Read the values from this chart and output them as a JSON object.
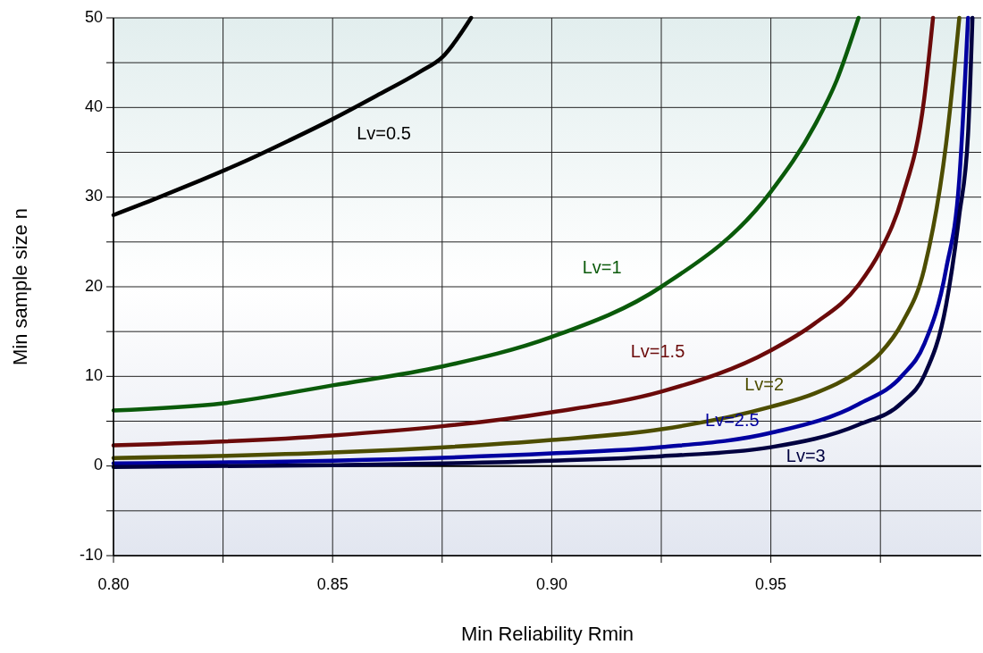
{
  "chart_data": {
    "type": "line",
    "xlabel": "Min Reliability Rmin",
    "ylabel": "Min sample size n",
    "xlim": [
      0.8,
      0.998
    ],
    "ylim": [
      -10,
      50
    ],
    "xticks": [
      {
        "value": 0.8,
        "label": "0.80"
      },
      {
        "value": 0.825,
        "label": null
      },
      {
        "value": 0.85,
        "label": "0.85"
      },
      {
        "value": 0.875,
        "label": null
      },
      {
        "value": 0.9,
        "label": "0.90"
      },
      {
        "value": 0.925,
        "label": null
      },
      {
        "value": 0.95,
        "label": "0.95"
      },
      {
        "value": 0.975,
        "label": null
      }
    ],
    "yticks": [
      -10,
      {
        "value": -5,
        "label": null
      },
      0,
      {
        "value": 5,
        "label": null
      },
      10,
      {
        "value": 15,
        "label": null
      },
      20,
      {
        "value": 25,
        "label": null
      },
      30,
      {
        "value": 35,
        "label": null
      },
      40,
      {
        "value": 45,
        "label": null
      },
      50
    ],
    "grid": true,
    "legend": false,
    "line_style": "solid",
    "marker": "none",
    "ref_lines": [
      {
        "axis": "y",
        "value": 0,
        "color": "#000000"
      }
    ],
    "series": [
      {
        "name": "Lv=0.5",
        "color": "#000000",
        "x": [
          0.8,
          0.81,
          0.82,
          0.83,
          0.84,
          0.85,
          0.86,
          0.87,
          0.875,
          0.8816
        ],
        "values": [
          28,
          29.9,
          31.9,
          34,
          36.3,
          38.7,
          41.3,
          44,
          45.6,
          50
        ]
      },
      {
        "name": "Lv=1",
        "color": "#0a5a0a",
        "x": [
          0.8,
          0.825,
          0.85,
          0.875,
          0.9,
          0.925,
          0.95,
          0.96,
          0.965,
          0.97
        ],
        "values": [
          6.2,
          7.0,
          9.0,
          11.1,
          14.4,
          20.0,
          30.6,
          38,
          43,
          50
        ]
      },
      {
        "name": "Lv=1.5",
        "color": "#6b0a0a",
        "x": [
          0.8,
          0.85,
          0.9,
          0.925,
          0.95,
          0.96,
          0.97,
          0.975,
          0.98,
          0.985,
          0.987
        ],
        "values": [
          2.3,
          3.4,
          6.0,
          8.3,
          12.9,
          15.9,
          20.2,
          24,
          30,
          41,
          50
        ]
      },
      {
        "name": "Lv=2",
        "color": "#4d4d00",
        "x": [
          0.8,
          0.85,
          0.9,
          0.925,
          0.95,
          0.96,
          0.97,
          0.975,
          0.98,
          0.985,
          0.99,
          0.993
        ],
        "values": [
          0.9,
          1.5,
          2.9,
          4.1,
          6.6,
          8.1,
          10.6,
          12.6,
          16,
          22,
          36,
          50
        ]
      },
      {
        "name": "Lv=2.5",
        "color": "#0000a0",
        "x": [
          0.8,
          0.85,
          0.9,
          0.925,
          0.95,
          0.97,
          0.98,
          0.985,
          0.99,
          0.993,
          0.995
        ],
        "values": [
          0.3,
          0.6,
          1.4,
          2.1,
          3.7,
          6.9,
          10.1,
          13.6,
          22,
          32,
          50
        ]
      },
      {
        "name": "Lv=3",
        "color": "#000040",
        "x": [
          0.8,
          0.85,
          0.9,
          0.925,
          0.95,
          0.97,
          0.98,
          0.985,
          0.99,
          0.993,
          0.995,
          0.996
        ],
        "values": [
          -0.1,
          0.1,
          0.6,
          1.1,
          2.1,
          4.6,
          7.1,
          10.1,
          18,
          28,
          37,
          50
        ]
      }
    ]
  }
}
